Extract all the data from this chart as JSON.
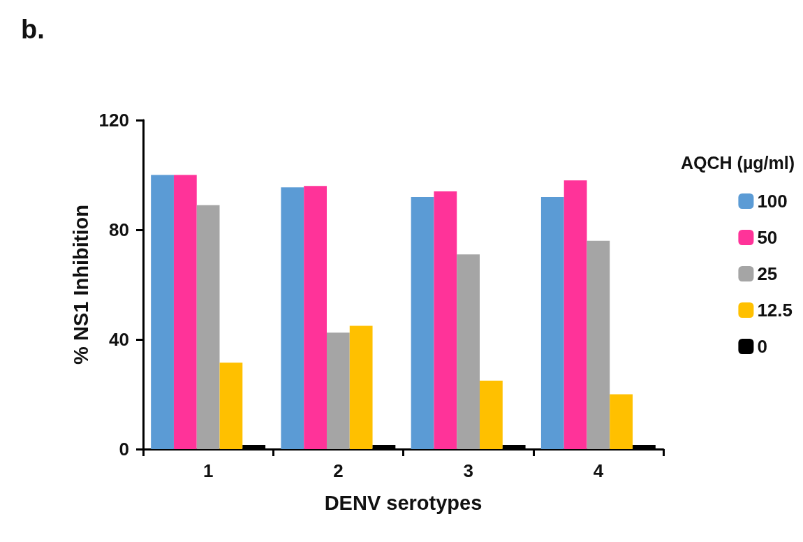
{
  "chart_data": {
    "type": "bar",
    "title": "b.",
    "xlabel": "DENV serotypes",
    "ylabel": "% NS1 Inhibition",
    "legend_title": "AQCH (µg/ml)",
    "categories": [
      "1",
      "2",
      "3",
      "4"
    ],
    "series": [
      {
        "name": "100",
        "color": "#5b9bd5",
        "values": [
          100,
          95.5,
          92,
          92
        ]
      },
      {
        "name": "50",
        "color": "#ff3399",
        "values": [
          100,
          96,
          94,
          98
        ]
      },
      {
        "name": "25",
        "color": "#a5a5a5",
        "values": [
          89,
          42.5,
          71,
          76
        ]
      },
      {
        "name": "12.5",
        "color": "#ffc000",
        "values": [
          31.5,
          45,
          25,
          20
        ]
      },
      {
        "name": "0",
        "color": "#000000",
        "values": [
          1.5,
          1.5,
          1.5,
          1.5
        ]
      }
    ],
    "ylim": [
      0,
      120
    ],
    "yticks": [
      0,
      40,
      80,
      120
    ],
    "grid": false,
    "legend": "right"
  }
}
